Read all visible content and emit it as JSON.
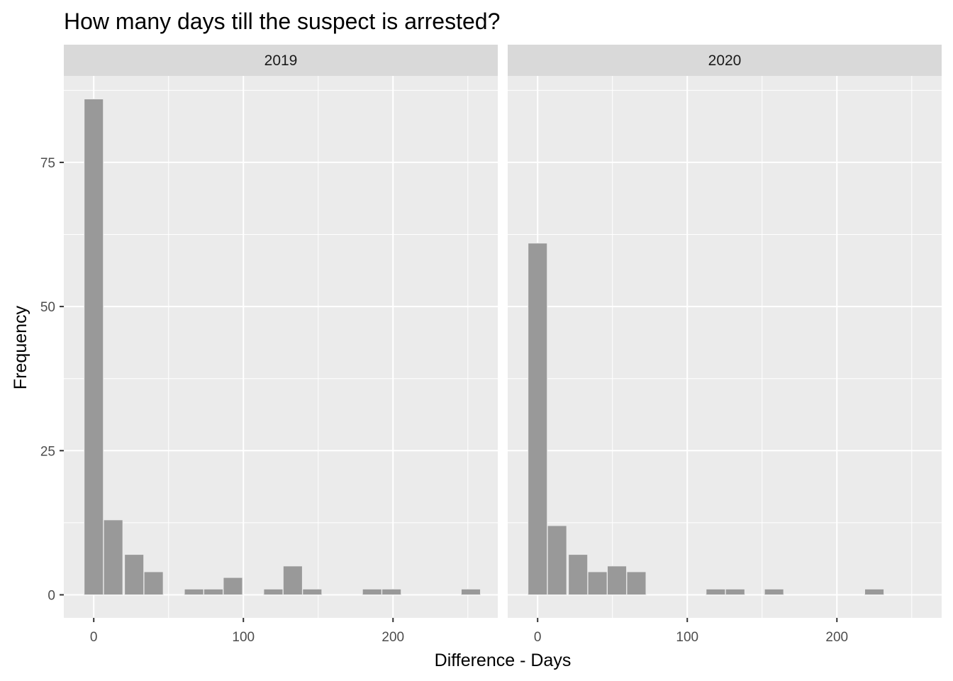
{
  "chart_data": {
    "type": "bar",
    "subtype": "faceted-histogram",
    "title": "How many days till the suspect is arrested?",
    "xlabel": "Difference - Days",
    "ylabel": "Frequency",
    "xlim": [
      -20,
      270
    ],
    "ylim": [
      -4,
      90
    ],
    "x_ticks": [
      0,
      100,
      200
    ],
    "x_tick_labels": [
      "0",
      "100",
      "200"
    ],
    "y_ticks": [
      0,
      25,
      50,
      75
    ],
    "y_tick_labels": [
      "0",
      "25",
      "50",
      "75"
    ],
    "bin_width": 13.3,
    "grid": true,
    "bar_color": "#999999",
    "panel_background": "#ebebeb",
    "strip_background": "#d9d9d9",
    "facets": [
      {
        "label": "2019",
        "bins": [
          {
            "center": 0,
            "count": 86
          },
          {
            "center": 13,
            "count": 13
          },
          {
            "center": 27,
            "count": 7
          },
          {
            "center": 40,
            "count": 4
          },
          {
            "center": 67,
            "count": 1
          },
          {
            "center": 80,
            "count": 1
          },
          {
            "center": 93,
            "count": 3
          },
          {
            "center": 120,
            "count": 1
          },
          {
            "center": 133,
            "count": 5
          },
          {
            "center": 146,
            "count": 1
          },
          {
            "center": 186,
            "count": 1
          },
          {
            "center": 199,
            "count": 1
          },
          {
            "center": 252,
            "count": 1
          }
        ]
      },
      {
        "label": "2020",
        "bins": [
          {
            "center": 0,
            "count": 61
          },
          {
            "center": 13,
            "count": 12
          },
          {
            "center": 27,
            "count": 7
          },
          {
            "center": 40,
            "count": 4
          },
          {
            "center": 53,
            "count": 5
          },
          {
            "center": 66,
            "count": 4
          },
          {
            "center": 119,
            "count": 1
          },
          {
            "center": 132,
            "count": 1
          },
          {
            "center": 158,
            "count": 1
          },
          {
            "center": 225,
            "count": 1
          }
        ]
      }
    ]
  }
}
